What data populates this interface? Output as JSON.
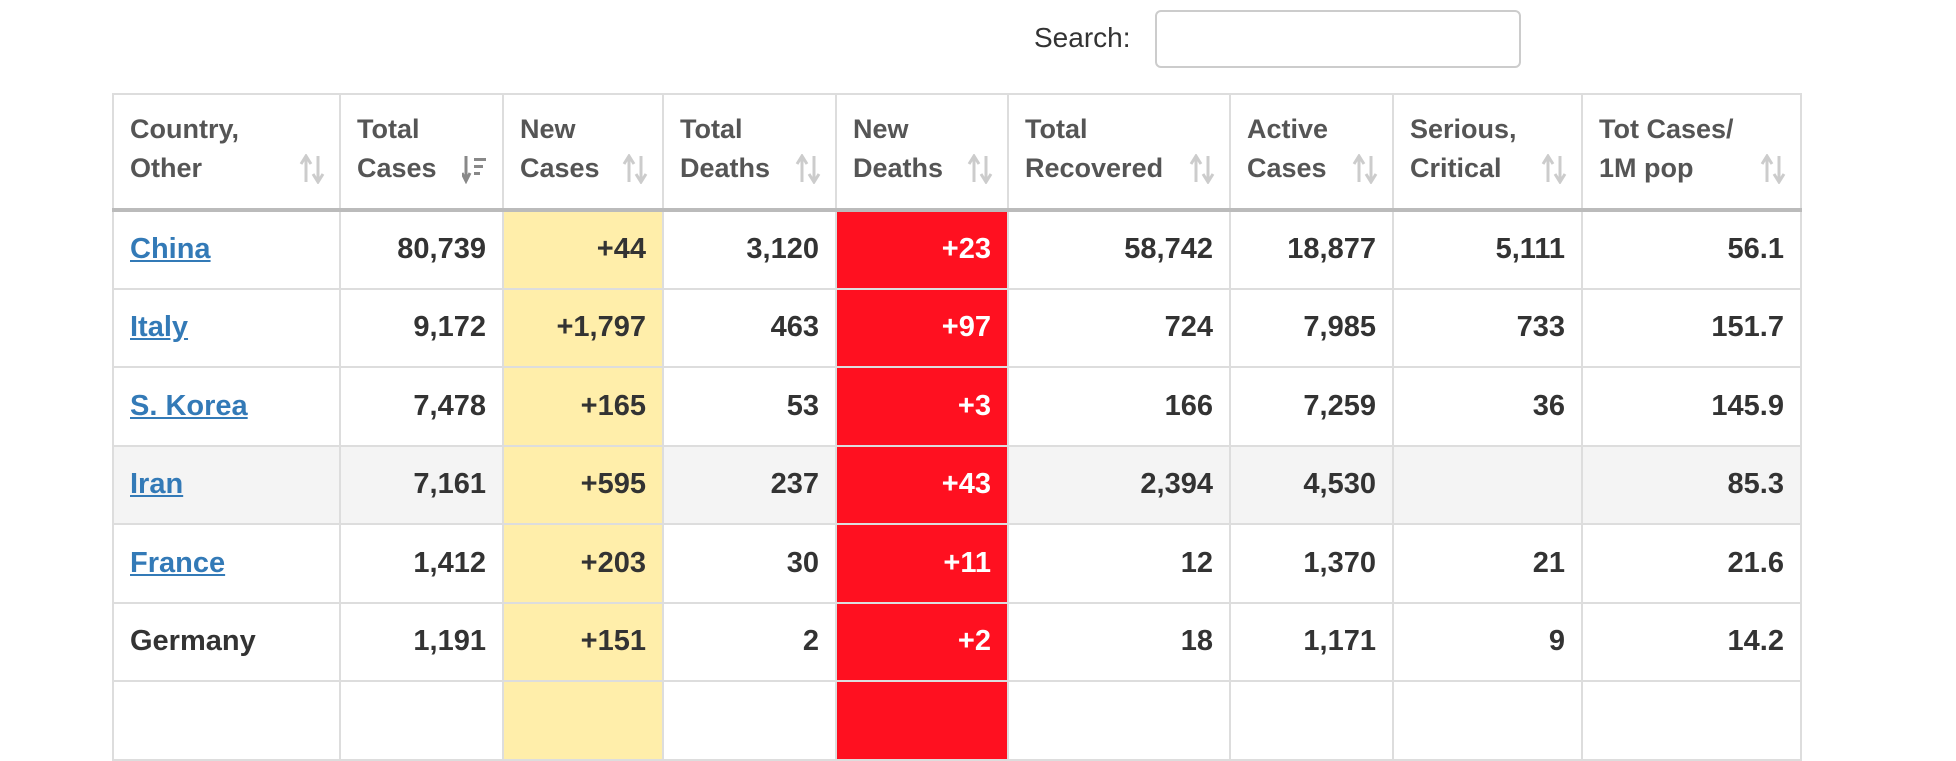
{
  "search": {
    "label": "Search:"
  },
  "table": {
    "headers": [
      [
        "Country,",
        "Other"
      ],
      [
        "Total",
        "Cases"
      ],
      [
        "New",
        "Cases"
      ],
      [
        "Total",
        "Deaths"
      ],
      [
        "New",
        "Deaths"
      ],
      [
        "Total",
        "Recovered"
      ],
      [
        "Active",
        "Cases"
      ],
      [
        "Serious,",
        "Critical"
      ],
      [
        "Tot Cases/",
        "1M pop"
      ]
    ],
    "rows": [
      {
        "cells": [
          "China",
          "80,739",
          "+44",
          "3,120",
          "+23",
          "58,742",
          "18,877",
          "5,111",
          "56.1"
        ],
        "link": true,
        "highlight": false
      },
      {
        "cells": [
          "Italy",
          "9,172",
          "+1,797",
          "463",
          "+97",
          "724",
          "7,985",
          "733",
          "151.7"
        ],
        "link": true,
        "highlight": false
      },
      {
        "cells": [
          "S. Korea",
          "7,478",
          "+165",
          "53",
          "+3",
          "166",
          "7,259",
          "36",
          "145.9"
        ],
        "link": true,
        "highlight": false
      },
      {
        "cells": [
          "Iran",
          "7,161",
          "+595",
          "237",
          "+43",
          "2,394",
          "4,530",
          null,
          "85.3"
        ],
        "link": true,
        "highlight": true
      },
      {
        "cells": [
          "France",
          "1,412",
          "+203",
          "30",
          "+11",
          "12",
          "1,370",
          "21",
          "21.6"
        ],
        "link": true,
        "highlight": false
      },
      {
        "cells": [
          "Germany",
          "1,191",
          "+151",
          "2",
          "+2",
          "18",
          "1,171",
          "9",
          "14.2"
        ],
        "link": false,
        "highlight": false
      }
    ]
  }
}
